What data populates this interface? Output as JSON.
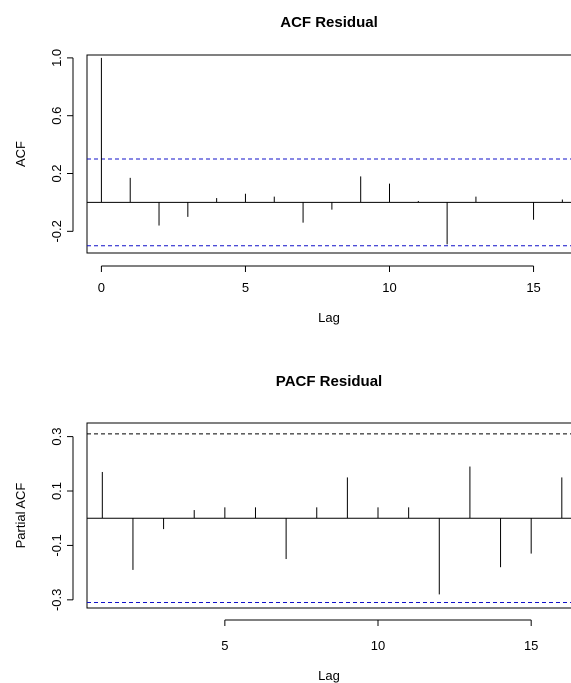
{
  "chart_data": [
    {
      "type": "bar",
      "subtype": "acf-spike",
      "title": "ACF Residual",
      "xlabel": "Lag",
      "ylabel": "ACF",
      "xlim": [
        -0.5,
        16.3
      ],
      "ylim": [
        -0.35,
        1.02
      ],
      "xticks": [
        0,
        5,
        10,
        15
      ],
      "yticks": [
        -0.2,
        0.2,
        0.6,
        1.0
      ],
      "ytick_labels": [
        "-0.2",
        "0.2",
        "0.6",
        "1.0"
      ],
      "confidence_bound": 0.3,
      "confidence_color": "#1010c8",
      "lags": [
        0,
        1,
        2,
        3,
        4,
        5,
        6,
        7,
        8,
        9,
        10,
        11,
        12,
        13,
        14,
        15,
        16
      ],
      "values": [
        1.0,
        0.17,
        -0.16,
        -0.1,
        0.03,
        0.06,
        0.04,
        -0.14,
        -0.05,
        0.18,
        0.13,
        0.01,
        -0.29,
        0.04,
        0.0,
        -0.12,
        0.02
      ]
    },
    {
      "type": "bar",
      "subtype": "pacf-spike",
      "title": "PACF Residual",
      "xlabel": "Lag",
      "ylabel": "Partial ACF",
      "xlim": [
        0.5,
        16.3
      ],
      "ylim": [
        -0.33,
        0.35
      ],
      "xticks": [
        5,
        10,
        15
      ],
      "yticks": [
        -0.3,
        -0.1,
        0.1,
        0.3
      ],
      "ytick_labels": [
        "-0.3",
        "-0.1",
        "0.1",
        "0.3"
      ],
      "confidence_bound": 0.31,
      "confidence_colors": {
        "upper": "#000000",
        "lower": "#1010c8"
      },
      "lags": [
        1,
        2,
        3,
        4,
        5,
        6,
        7,
        8,
        9,
        10,
        11,
        12,
        13,
        14,
        15,
        16
      ],
      "values": [
        0.17,
        -0.19,
        -0.04,
        0.03,
        0.04,
        0.04,
        -0.15,
        0.04,
        0.15,
        0.04,
        0.04,
        -0.28,
        0.19,
        -0.18,
        -0.13,
        0.15
      ]
    }
  ]
}
